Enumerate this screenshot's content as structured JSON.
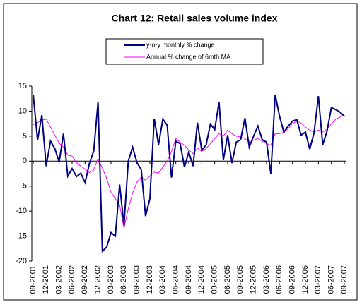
{
  "chart_data": {
    "type": "line",
    "title": "Chart 12:  Retail sales volume index",
    "categories": [
      "09-2001",
      null,
      null,
      "12-2001",
      null,
      null,
      "03-2002",
      null,
      null,
      "06-2002",
      null,
      null,
      "09-2002",
      null,
      null,
      "12-2002",
      null,
      null,
      "03-2003",
      null,
      null,
      "06-2003",
      null,
      null,
      "09-2003",
      null,
      null,
      "12-2003",
      null,
      null,
      "03-2004",
      null,
      null,
      "06-2004",
      null,
      null,
      "09-2004",
      null,
      null,
      "12-2004",
      null,
      null,
      "03-2005",
      null,
      null,
      "06-2005",
      null,
      null,
      "09-2005",
      null,
      null,
      "12-2005",
      null,
      null,
      "03-2006",
      null,
      null,
      "06-2006",
      null,
      null,
      "09-2006",
      null,
      null,
      "12-2006",
      null,
      null,
      "03-2007",
      null,
      null,
      "06-2007",
      null,
      null,
      "09-2007"
    ],
    "series": [
      {
        "name": "y-o-y monthly % change",
        "color": "#000080",
        "values": [
          13.3,
          4.2,
          9.2,
          -1,
          4,
          2.5,
          -0.2,
          5.5,
          -3,
          -1.5,
          -3.1,
          -2.4,
          -4.3,
          -0.5,
          2,
          11.8,
          -18,
          -17.2,
          -14.3,
          -15,
          -4.7,
          -12.8,
          0,
          2.8,
          -0.3,
          -1.7,
          -11,
          -7.5,
          8.5,
          3.3,
          8.4,
          7.2,
          -3.3,
          4,
          3.5,
          -1.2,
          1.8,
          -1,
          7.7,
          2.2,
          3.2,
          7.4,
          6.3,
          11.8,
          0.2,
          5.2,
          -0.4,
          3.8,
          4.3,
          8.6,
          2.8,
          5,
          7,
          4.3,
          3.8,
          -2.6,
          13.3,
          9,
          5.8,
          7,
          8,
          8.3,
          5.2,
          5.8,
          2.4,
          5.7,
          13,
          3.3,
          6,
          10.7,
          10.3,
          9.8,
          9
        ]
      },
      {
        "name": "Annual % change of 6mth MA",
        "color": "#ff00ff",
        "values": [
          7.3,
          7.7,
          8.2,
          8.4,
          6.8,
          5.2,
          3.6,
          2.8,
          1.2,
          1,
          -0.3,
          -1,
          -1.6,
          -2.3,
          -1.7,
          0.5,
          -1.4,
          -3.5,
          -6.2,
          -7.5,
          -8.8,
          -13.4,
          -9.5,
          -6.4,
          -4.2,
          -3.2,
          -3.8,
          -3,
          -2.2,
          -2.4,
          -1.2,
          0,
          1.9,
          4.5,
          3.8,
          3.2,
          2.2,
          1.5,
          2.6,
          2,
          2.5,
          3.5,
          4.5,
          5.5,
          5,
          6.2,
          5.5,
          5,
          4.8,
          4.5,
          3.8,
          4.2,
          4.5,
          4,
          3.5,
          3.2,
          5.5,
          5.5,
          5.8,
          6.5,
          7.5,
          8,
          7.6,
          6.8,
          6.2,
          5.8,
          6.2,
          5.8,
          6.4,
          7.4,
          8.4,
          8.8,
          9.2
        ]
      }
    ],
    "ylim": [
      -20,
      15
    ],
    "yticks": [
      -20,
      -15,
      -10,
      -5,
      0,
      5,
      10,
      15
    ],
    "grid": false
  }
}
